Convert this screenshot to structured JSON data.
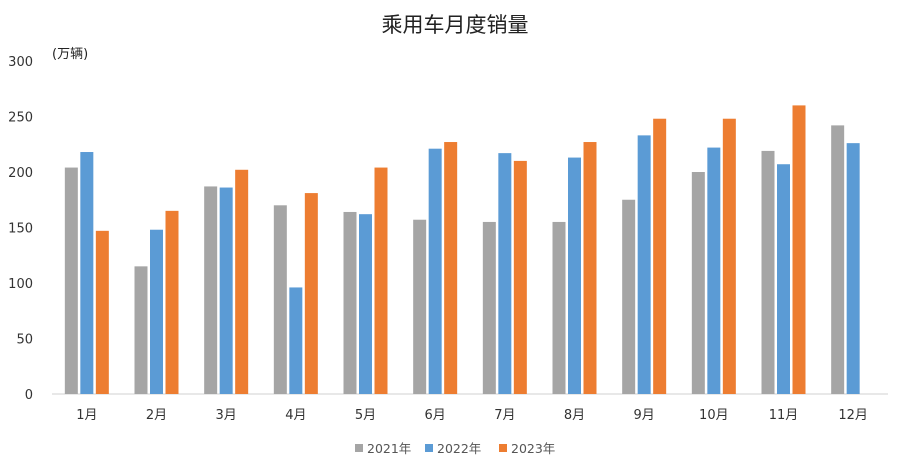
{
  "chart_data": {
    "type": "bar",
    "title": "乘用车月度销量",
    "unit_label": "(万辆)",
    "categories": [
      "1月",
      "2月",
      "3月",
      "4月",
      "5月",
      "6月",
      "7月",
      "8月",
      "9月",
      "10月",
      "11月",
      "12月"
    ],
    "series": [
      {
        "name": "2021年",
        "color": "#a5a5a5",
        "values": [
          204,
          115,
          187,
          170,
          164,
          157,
          155,
          155,
          175,
          200,
          219,
          242
        ]
      },
      {
        "name": "2022年",
        "color": "#5b9bd5",
        "values": [
          218,
          148,
          186,
          96,
          162,
          221,
          217,
          213,
          233,
          222,
          207,
          226
        ]
      },
      {
        "name": "2023年",
        "color": "#ed7d31",
        "values": [
          147,
          165,
          202,
          181,
          204,
          227,
          210,
          227,
          248,
          248,
          260,
          null
        ]
      }
    ],
    "ylim": [
      0,
      300
    ],
    "yticks": [
      0,
      50,
      100,
      150,
      200,
      250,
      300
    ],
    "grid": false,
    "legend": "bottom"
  }
}
